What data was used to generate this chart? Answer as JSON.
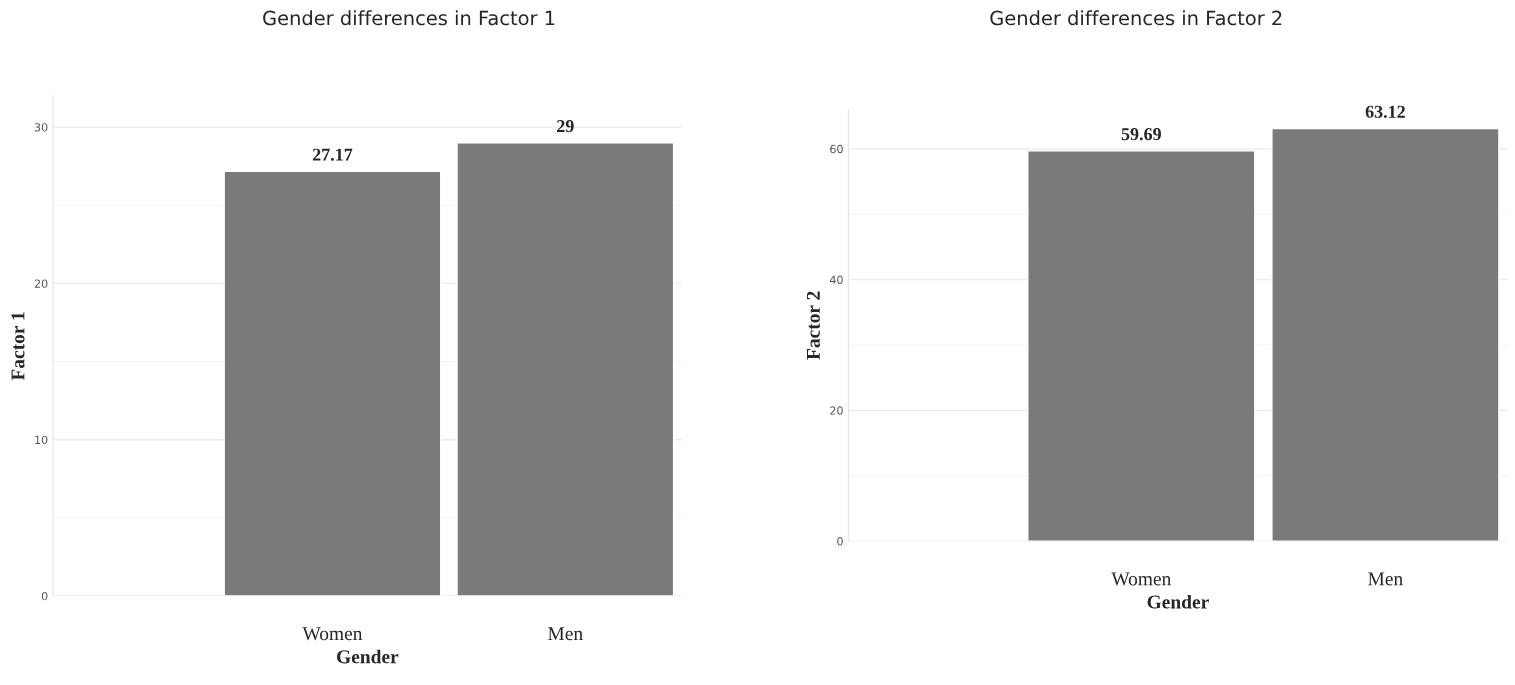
{
  "chart_data": [
    {
      "type": "bar",
      "title": "Gender differences in Factor 1",
      "xlabel": "Gender",
      "ylabel": "Factor 1",
      "categories": [
        "Women",
        "Men"
      ],
      "values": [
        27.17,
        29
      ],
      "color": "#7a7a7a",
      "ylim": [
        0,
        32
      ],
      "yticks": [
        0,
        10,
        20,
        30
      ],
      "grid": "y",
      "data_labels": true
    },
    {
      "type": "bar",
      "title": "Gender differences in Factor 2",
      "xlabel": "Gender",
      "ylabel": "Factor 2",
      "categories": [
        "Women",
        "Men"
      ],
      "values": [
        59.69,
        63.12
      ],
      "color": "#7a7a7a",
      "ylim": [
        0,
        66
      ],
      "yticks": [
        0,
        20,
        40,
        60
      ],
      "grid": "y",
      "data_labels": true
    }
  ]
}
